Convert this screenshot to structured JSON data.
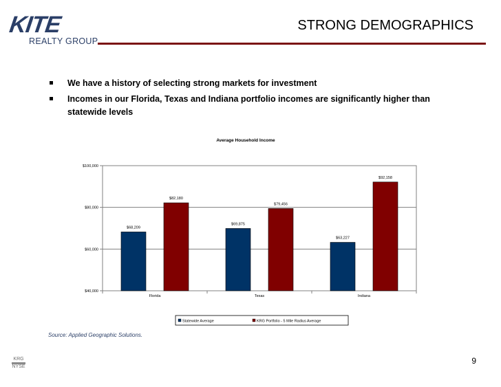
{
  "header": {
    "logo_main": "KITE",
    "logo_sub": "REALTY GROUP",
    "title": "STRONG DEMOGRAPHICS"
  },
  "bullets": [
    "We have a history of selecting strong markets for investment",
    "Incomes in our Florida, Texas and Indiana portfolio incomes are significantly higher than statewide levels"
  ],
  "chart_data": {
    "type": "bar",
    "title": "Average Household Income",
    "categories": [
      "Florida",
      "Texas",
      "Indiana"
    ],
    "series": [
      {
        "name": "Statewide Average",
        "values": [
          68209,
          69875,
          63227
        ],
        "labels": [
          "$68,209",
          "$69,875",
          "$63,227"
        ],
        "color": "#003366"
      },
      {
        "name": "KRG Portfolio - 5 Mile Radius Average",
        "values": [
          82180,
          79456,
          92158
        ],
        "labels": [
          "$82,180",
          "$79,456",
          "$92,158"
        ],
        "color": "#800000"
      }
    ],
    "ylim": [
      40000,
      100000
    ],
    "yticks": [
      {
        "value": 40000,
        "label": "$40,000"
      },
      {
        "value": 60000,
        "label": "$60,000"
      },
      {
        "value": 80000,
        "label": "$80,000"
      },
      {
        "value": 100000,
        "label": "$100,000"
      }
    ],
    "grid": true,
    "legend": "bottom",
    "xlabel": "",
    "ylabel": ""
  },
  "source": "Source: Applied Geographic Solutions.",
  "footer": {
    "logo_top": "KRG",
    "logo_bottom": "NYSE",
    "page_number": "9"
  }
}
